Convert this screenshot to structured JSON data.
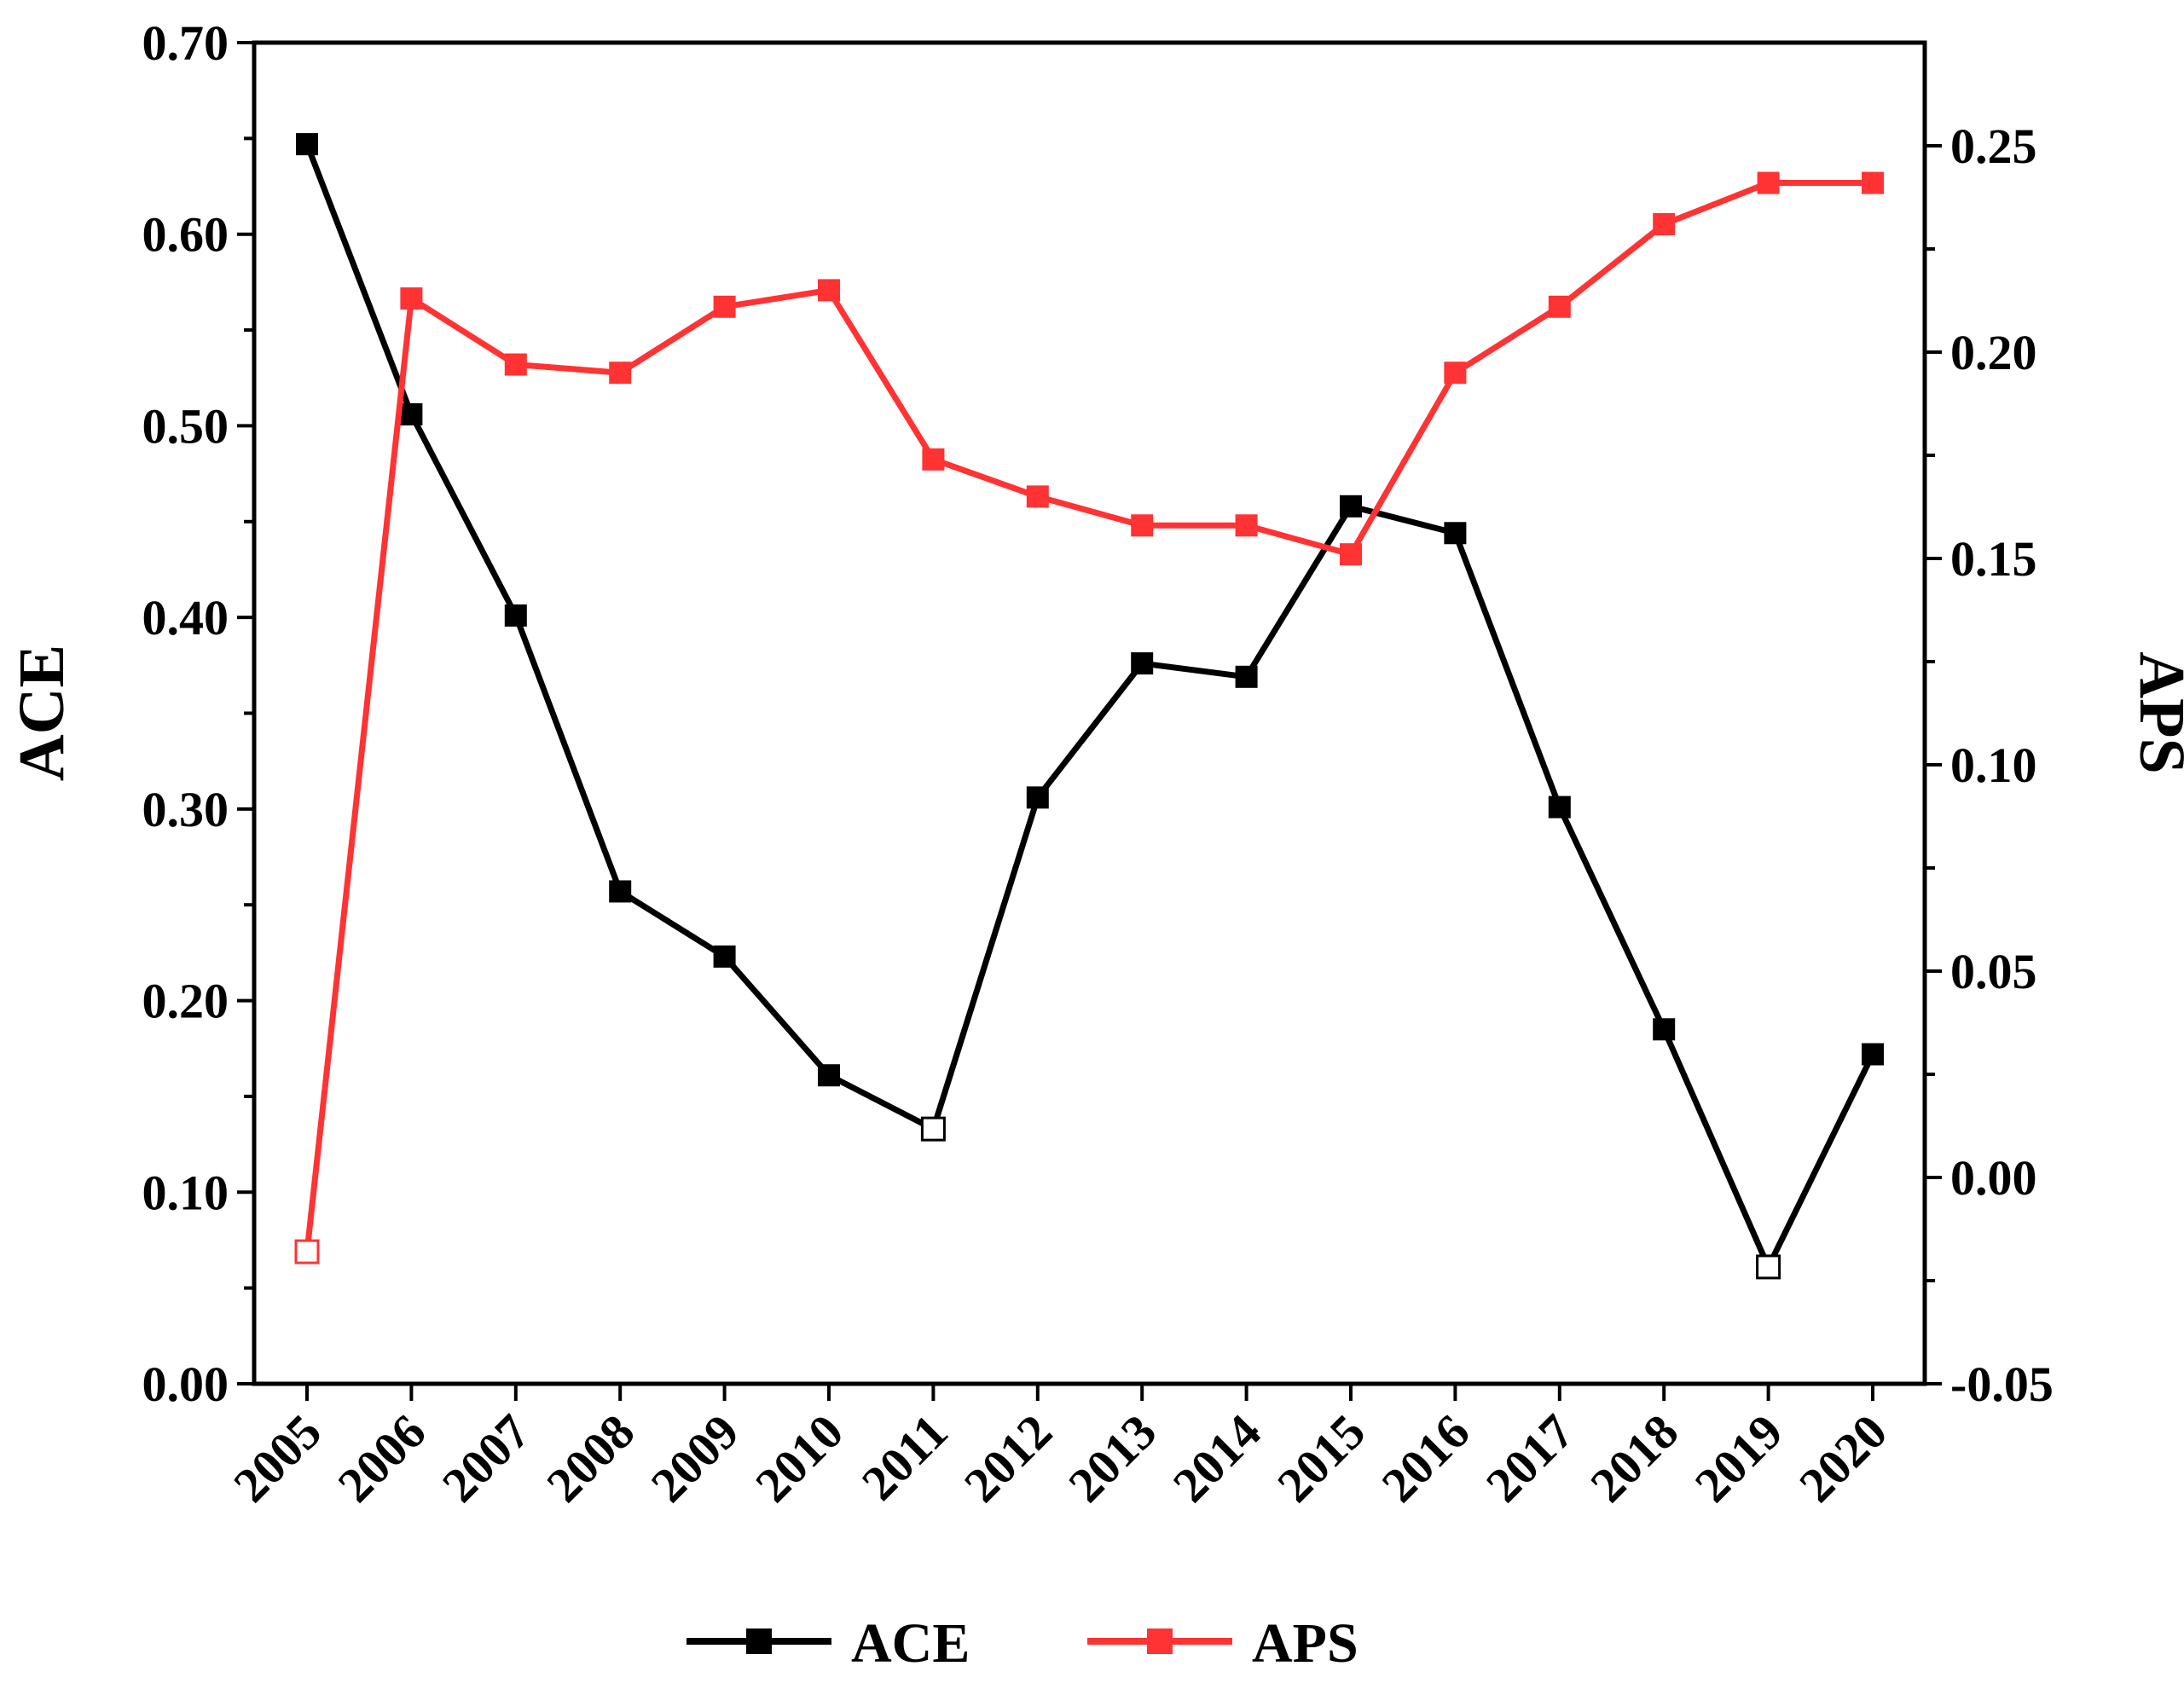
{
  "chart_data": {
    "type": "line",
    "title": "",
    "x": [
      "2005",
      "2006",
      "2007",
      "2008",
      "2009",
      "2010",
      "2011",
      "2012",
      "2013",
      "2014",
      "2015",
      "2016",
      "2017",
      "2018",
      "2019",
      "2020"
    ],
    "xlabel": "",
    "y_left": {
      "label": "ACE",
      "range": [
        0.0,
        0.7
      ],
      "ticks": [
        "0.00",
        "0.10",
        "0.20",
        "0.30",
        "0.40",
        "0.50",
        "0.60",
        "0.70"
      ]
    },
    "y_right": {
      "label": "APS",
      "range": [
        -0.05,
        0.275
      ],
      "ticks": [
        "-0.05",
        "0.00",
        "0.05",
        "0.10",
        "0.15",
        "0.20",
        "0.25"
      ]
    },
    "series": [
      {
        "name": "ACE",
        "axis": "left",
        "color": "#000000",
        "values": [
          0.647,
          0.506,
          0.401,
          0.257,
          0.223,
          0.161,
          0.133,
          0.306,
          0.376,
          0.369,
          0.458,
          0.444,
          0.301,
          0.185,
          0.061,
          0.172
        ],
        "hollow_markers": [
          "2011",
          "2019"
        ]
      },
      {
        "name": "APS",
        "axis": "right",
        "color": "#ff3333",
        "values": [
          -0.018,
          0.213,
          0.197,
          0.195,
          0.211,
          0.215,
          0.174,
          0.165,
          0.158,
          0.158,
          0.151,
          0.195,
          0.211,
          0.231,
          0.241,
          0.241
        ],
        "hollow_markers": [
          "2005"
        ]
      }
    ],
    "legend": {
      "position": "bottom-center",
      "entries": [
        "ACE",
        "APS"
      ]
    },
    "grid": false
  }
}
